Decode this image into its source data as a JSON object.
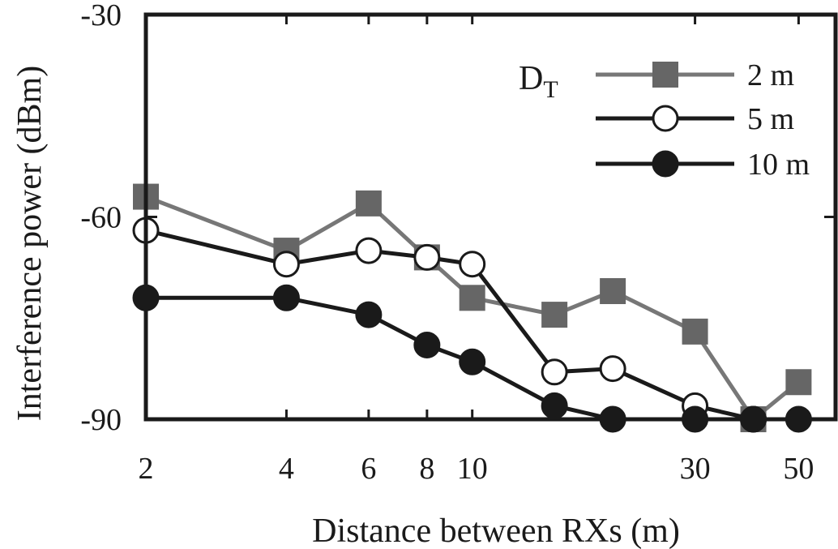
{
  "chart_data": {
    "type": "line",
    "title": "",
    "xlabel": "Distance between RXs (m)",
    "ylabel": "Interference power  (dBm)",
    "x_scale": "log",
    "xlim": [
      2,
      60
    ],
    "ylim": [
      -90,
      -30
    ],
    "x_ticks": [
      {
        "value": 2,
        "label": "2"
      },
      {
        "value": 4,
        "label": "4"
      },
      {
        "value": 6,
        "label": "6"
      },
      {
        "value": 8,
        "label": "8"
      },
      {
        "value": 10,
        "label": "10"
      },
      {
        "value": 30,
        "label": "30"
      },
      {
        "value": 50,
        "label": "50"
      }
    ],
    "y_ticks": [
      {
        "value": -30,
        "label": "-30"
      },
      {
        "value": -60,
        "label": "-60"
      },
      {
        "value": -90,
        "label": "-90"
      }
    ],
    "legend": {
      "title_main": "D",
      "title_sub": "T",
      "position": "top-right"
    },
    "series": [
      {
        "name": "2 m",
        "color": "#777777",
        "marker": "square",
        "marker_fill": "#666666",
        "points": [
          [
            2,
            -57
          ],
          [
            4,
            -65
          ],
          [
            6,
            -58
          ],
          [
            8,
            -66
          ],
          [
            10,
            -72
          ],
          [
            15,
            -74.5
          ],
          [
            20,
            -71
          ],
          [
            30,
            -77
          ],
          [
            40,
            -90
          ],
          [
            50,
            -84.5
          ]
        ]
      },
      {
        "name": "5 m",
        "color": "#1a1a1a",
        "marker": "circle-open",
        "marker_fill": "#ffffff",
        "points": [
          [
            2,
            -62
          ],
          [
            4,
            -67
          ],
          [
            6,
            -65
          ],
          [
            8,
            -66
          ],
          [
            10,
            -67
          ],
          [
            15,
            -83
          ],
          [
            20,
            -82.5
          ],
          [
            30,
            -88
          ],
          [
            40,
            -90
          ]
        ]
      },
      {
        "name": "10 m",
        "color": "#1a1a1a",
        "marker": "circle-filled",
        "marker_fill": "#1a1a1a",
        "points": [
          [
            2,
            -72
          ],
          [
            4,
            -72
          ],
          [
            6,
            -74.5
          ],
          [
            8,
            -79
          ],
          [
            10,
            -81.5
          ],
          [
            15,
            -88
          ],
          [
            20,
            -90
          ],
          [
            30,
            -90
          ],
          [
            40,
            -90
          ],
          [
            50,
            -90
          ]
        ]
      }
    ]
  }
}
